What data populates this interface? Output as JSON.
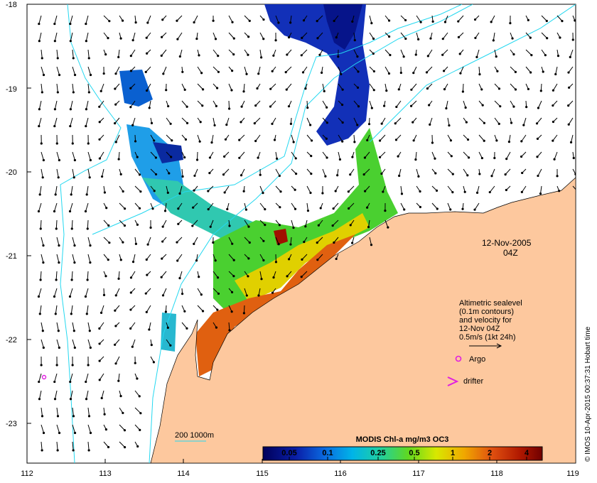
{
  "map": {
    "lon_ticks": [
      "112",
      "113",
      "114",
      "115",
      "116",
      "117",
      "118",
      "119"
    ],
    "lat_ticks": [
      "-18",
      "-19",
      "-20",
      "-21",
      "-22",
      "-23"
    ],
    "date_line1": "12-Nov-2005",
    "date_line2": "04Z",
    "info_lines": [
      "Altimetric sealevel",
      "(0.1m contours)",
      "and velocity for",
      "12-Nov 04Z",
      "0.5m/s (1kt 24h)"
    ],
    "argo_label": "Argo",
    "drifter_label": "drifter",
    "isobath_label": "200  1000m",
    "credit": "© IMOS 10-Apr-2015 00:37:31 Hobart time",
    "colors": {
      "land": "#FDC89E",
      "contour": "#24D8F0",
      "argo": "#E020E0"
    }
  },
  "colorbar": {
    "title": "MODIS Chl-a mg/m3 OC3",
    "labels": [
      "0.05",
      "0.1",
      "0.25",
      "0.5",
      "1",
      "2",
      "4"
    ]
  }
}
